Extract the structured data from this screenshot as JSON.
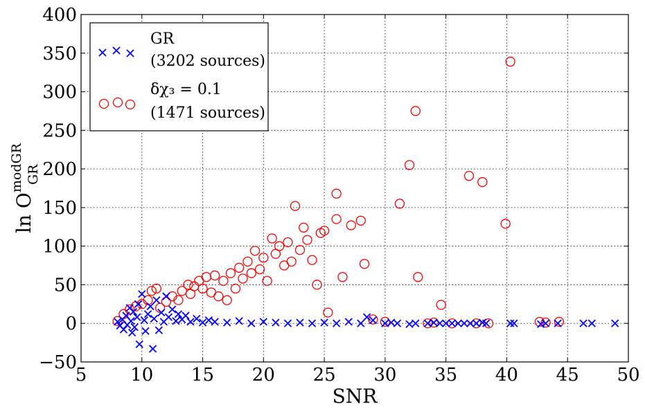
{
  "chart_data": {
    "type": "scatter",
    "title": "",
    "xlabel": "SNR",
    "ylabel": "ln O",
    "ylabel_sup": "modGR",
    "ylabel_sub": "GR",
    "xlim": [
      5,
      50
    ],
    "ylim": [
      -50,
      400
    ],
    "x_ticks": [
      "5",
      "10",
      "15",
      "20",
      "25",
      "30",
      "35",
      "40",
      "45",
      "50"
    ],
    "y_ticks": [
      "−50",
      "0",
      "50",
      "100",
      "150",
      "200",
      "250",
      "300",
      "350",
      "400"
    ],
    "grid": true,
    "legend_position": "top-left",
    "series": [
      {
        "name": "GR",
        "count_label": "(3202 sources)",
        "marker": "x",
        "color": "#0000ff",
        "points": [
          [
            8.0,
            2
          ],
          [
            8.2,
            -3
          ],
          [
            8.4,
            5
          ],
          [
            8.5,
            -8
          ],
          [
            8.7,
            10
          ],
          [
            8.8,
            -2
          ],
          [
            9.0,
            20
          ],
          [
            9.1,
            3
          ],
          [
            9.2,
            -12
          ],
          [
            9.3,
            15
          ],
          [
            9.4,
            -5
          ],
          [
            9.6,
            8
          ],
          [
            9.7,
            25
          ],
          [
            9.8,
            -27
          ],
          [
            10.0,
            38
          ],
          [
            10.2,
            4
          ],
          [
            10.3,
            -10
          ],
          [
            10.5,
            12
          ],
          [
            10.7,
            22
          ],
          [
            10.9,
            -33
          ],
          [
            11.0,
            6
          ],
          [
            11.2,
            30
          ],
          [
            11.4,
            -9
          ],
          [
            11.6,
            14
          ],
          [
            11.8,
            2
          ],
          [
            12.0,
            35
          ],
          [
            12.2,
            8
          ],
          [
            12.5,
            18
          ],
          [
            12.8,
            3
          ],
          [
            13.0,
            12
          ],
          [
            13.3,
            5
          ],
          [
            13.6,
            10
          ],
          [
            14.0,
            2
          ],
          [
            14.5,
            6
          ],
          [
            15.0,
            1
          ],
          [
            15.5,
            4
          ],
          [
            16.0,
            2
          ],
          [
            17.0,
            1
          ],
          [
            18.0,
            3
          ],
          [
            19.0,
            0
          ],
          [
            20.0,
            2
          ],
          [
            21.0,
            1
          ],
          [
            22.0,
            0
          ],
          [
            23.0,
            1
          ],
          [
            24.0,
            0
          ],
          [
            25.0,
            1
          ],
          [
            26.0,
            0
          ],
          [
            27.0,
            2
          ],
          [
            28.0,
            0
          ],
          [
            28.5,
            8
          ],
          [
            29.0,
            4
          ],
          [
            30.0,
            0
          ],
          [
            30.5,
            1
          ],
          [
            31.0,
            0
          ],
          [
            32.0,
            -1
          ],
          [
            32.5,
            0
          ],
          [
            33.5,
            0
          ],
          [
            34.0,
            1
          ],
          [
            34.5,
            0
          ],
          [
            35.0,
            0
          ],
          [
            35.5,
            0
          ],
          [
            36.0,
            0
          ],
          [
            36.5,
            0
          ],
          [
            37.0,
            0
          ],
          [
            37.5,
            0
          ],
          [
            38.0,
            1
          ],
          [
            38.3,
            0
          ],
          [
            40.3,
            0
          ],
          [
            40.6,
            0
          ],
          [
            42.8,
            -1
          ],
          [
            43.2,
            0
          ],
          [
            44.2,
            0
          ],
          [
            46.3,
            0
          ],
          [
            47.0,
            0
          ],
          [
            48.9,
            0
          ]
        ]
      },
      {
        "name": "δχ₃ = 0.1",
        "count_label": "(1471 sources)",
        "marker": "o",
        "color": "#ff0000",
        "points": [
          [
            8.0,
            3
          ],
          [
            8.5,
            12
          ],
          [
            9.0,
            18
          ],
          [
            9.5,
            22
          ],
          [
            10.0,
            25
          ],
          [
            10.5,
            30
          ],
          [
            10.8,
            42
          ],
          [
            11.2,
            45
          ],
          [
            11.5,
            20
          ],
          [
            12.0,
            28
          ],
          [
            12.5,
            35
          ],
          [
            13.0,
            30
          ],
          [
            13.3,
            42
          ],
          [
            13.8,
            50
          ],
          [
            14.0,
            38
          ],
          [
            14.3,
            48
          ],
          [
            14.7,
            55
          ],
          [
            15.0,
            45
          ],
          [
            15.3,
            60
          ],
          [
            15.7,
            40
          ],
          [
            16.0,
            62
          ],
          [
            16.3,
            35
          ],
          [
            16.7,
            55
          ],
          [
            17.0,
            30
          ],
          [
            17.3,
            65
          ],
          [
            17.7,
            45
          ],
          [
            18.0,
            72
          ],
          [
            18.3,
            58
          ],
          [
            18.7,
            80
          ],
          [
            19.0,
            65
          ],
          [
            19.3,
            94
          ],
          [
            19.7,
            70
          ],
          [
            20.0,
            85
          ],
          [
            20.3,
            55
          ],
          [
            20.7,
            110
          ],
          [
            21.0,
            90
          ],
          [
            21.3,
            100
          ],
          [
            21.7,
            75
          ],
          [
            22.0,
            105
          ],
          [
            22.3,
            80
          ],
          [
            22.6,
            152
          ],
          [
            23.0,
            95
          ],
          [
            23.3,
            124
          ],
          [
            23.6,
            108
          ],
          [
            24.0,
            82
          ],
          [
            24.4,
            50
          ],
          [
            24.7,
            117
          ],
          [
            25.0,
            120
          ],
          [
            25.3,
            14
          ],
          [
            26.0,
            168
          ],
          [
            26.0,
            135
          ],
          [
            26.5,
            60
          ],
          [
            27.2,
            127
          ],
          [
            28.0,
            133
          ],
          [
            28.3,
            77
          ],
          [
            29.0,
            5
          ],
          [
            30.0,
            2
          ],
          [
            31.2,
            155
          ],
          [
            32.0,
            205
          ],
          [
            32.5,
            275
          ],
          [
            32.7,
            60
          ],
          [
            33.5,
            0
          ],
          [
            34.0,
            1
          ],
          [
            34.6,
            24
          ],
          [
            35.5,
            0
          ],
          [
            36.9,
            191
          ],
          [
            37.5,
            0
          ],
          [
            38.0,
            183
          ],
          [
            38.5,
            0
          ],
          [
            39.9,
            129
          ],
          [
            40.3,
            339
          ],
          [
            42.7,
            2
          ],
          [
            43.2,
            1
          ],
          [
            44.3,
            2
          ]
        ]
      }
    ]
  }
}
